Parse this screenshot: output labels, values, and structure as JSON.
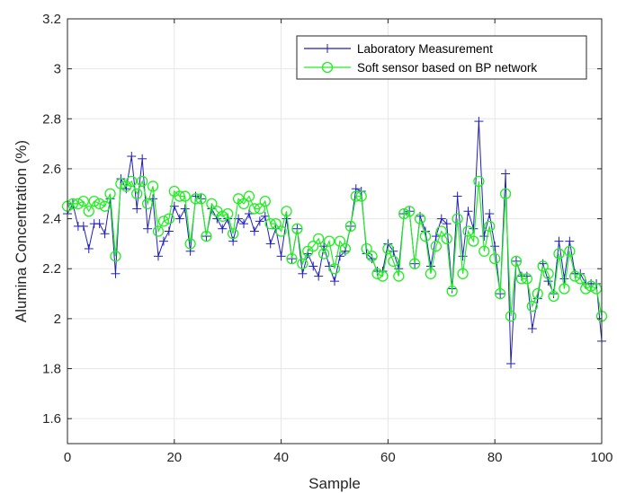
{
  "chart_data": {
    "type": "line",
    "xlabel": "Sample",
    "ylabel": "Alumina Concentration (%)",
    "xlim": [
      0,
      100
    ],
    "ylim": [
      1.5,
      3.2
    ],
    "xticks": [
      0,
      20,
      40,
      60,
      80,
      100
    ],
    "yticks": [
      1.6,
      1.8,
      2.0,
      2.2,
      2.4,
      2.6,
      2.8,
      3.0,
      3.2
    ],
    "xtick_labels": [
      "0",
      "20",
      "40",
      "60",
      "80",
      "100"
    ],
    "ytick_labels": [
      "1.6",
      "1.8",
      "2",
      "2.2",
      "2.4",
      "2.6",
      "2.8",
      "3",
      "3.2"
    ],
    "grid": true,
    "legend_position": "top-right",
    "x": [
      0,
      1,
      2,
      3,
      4,
      5,
      6,
      7,
      8,
      9,
      10,
      11,
      12,
      13,
      14,
      15,
      16,
      17,
      18,
      19,
      20,
      21,
      22,
      23,
      24,
      25,
      26,
      27,
      28,
      29,
      30,
      31,
      32,
      33,
      34,
      35,
      36,
      37,
      38,
      39,
      40,
      41,
      42,
      43,
      44,
      45,
      46,
      47,
      48,
      49,
      50,
      51,
      52,
      53,
      54,
      55,
      56,
      57,
      58,
      59,
      60,
      61,
      62,
      63,
      64,
      65,
      66,
      67,
      68,
      69,
      70,
      71,
      72,
      73,
      74,
      75,
      76,
      77,
      78,
      79,
      80,
      81,
      82,
      83,
      84,
      85,
      86,
      87,
      88,
      89,
      90,
      91,
      92,
      93,
      94,
      95,
      96,
      97,
      98,
      99,
      100
    ],
    "series": [
      {
        "name": "Laboratory Measurement",
        "color": "#1f1fbf",
        "marker": "plus",
        "values": [
          2.42,
          2.46,
          2.37,
          2.37,
          2.28,
          2.38,
          2.38,
          2.34,
          2.48,
          2.18,
          2.56,
          2.52,
          2.65,
          2.44,
          2.64,
          2.36,
          2.48,
          2.25,
          2.31,
          2.35,
          2.45,
          2.4,
          2.44,
          2.27,
          2.49,
          2.48,
          2.33,
          2.44,
          2.4,
          2.36,
          2.4,
          2.31,
          2.4,
          2.38,
          2.42,
          2.35,
          2.39,
          2.41,
          2.3,
          2.36,
          2.25,
          2.4,
          2.24,
          2.36,
          2.18,
          2.26,
          2.21,
          2.17,
          2.29,
          2.21,
          2.15,
          2.25,
          2.27,
          2.37,
          2.52,
          2.51,
          2.26,
          2.24,
          2.19,
          2.19,
          2.3,
          2.27,
          2.2,
          2.42,
          2.43,
          2.22,
          2.41,
          2.35,
          2.21,
          2.33,
          2.4,
          2.38,
          2.12,
          2.49,
          2.25,
          2.43,
          2.36,
          2.79,
          2.33,
          2.42,
          2.29,
          2.1,
          2.58,
          1.82,
          2.23,
          2.17,
          2.17,
          1.96,
          2.08,
          2.22,
          2.15,
          2.1,
          2.31,
          2.16,
          2.31,
          2.18,
          2.18,
          2.14,
          2.14,
          2.14,
          1.91
        ]
      },
      {
        "name": "Soft sensor based on BP network",
        "color": "#22ee22",
        "marker": "circle",
        "values": [
          2.45,
          2.46,
          2.46,
          2.47,
          2.43,
          2.47,
          2.46,
          2.45,
          2.5,
          2.25,
          2.54,
          2.53,
          2.55,
          2.5,
          2.55,
          2.46,
          2.53,
          2.35,
          2.39,
          2.4,
          2.51,
          2.49,
          2.49,
          2.3,
          2.48,
          2.48,
          2.33,
          2.46,
          2.43,
          2.41,
          2.42,
          2.34,
          2.48,
          2.46,
          2.49,
          2.44,
          2.44,
          2.47,
          2.38,
          2.38,
          2.35,
          2.43,
          2.24,
          2.36,
          2.22,
          2.27,
          2.29,
          2.32,
          2.26,
          2.31,
          2.2,
          2.31,
          2.28,
          2.37,
          2.49,
          2.49,
          2.28,
          2.25,
          2.18,
          2.17,
          2.28,
          2.23,
          2.17,
          2.42,
          2.43,
          2.22,
          2.4,
          2.33,
          2.18,
          2.29,
          2.35,
          2.32,
          2.11,
          2.4,
          2.18,
          2.35,
          2.31,
          2.55,
          2.27,
          2.37,
          2.24,
          2.1,
          2.5,
          2.01,
          2.23,
          2.16,
          2.16,
          2.05,
          2.1,
          2.21,
          2.18,
          2.09,
          2.26,
          2.12,
          2.27,
          2.17,
          2.16,
          2.12,
          2.13,
          2.12,
          2.01
        ]
      }
    ]
  }
}
